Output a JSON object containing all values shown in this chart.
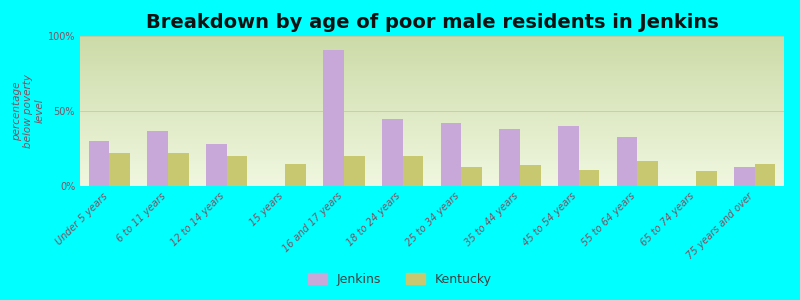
{
  "title": "Breakdown by age of poor male residents in Jenkins",
  "ylabel": "percentage\nbelow poverty\nlevel",
  "categories": [
    "Under 5 years",
    "6 to 11 years",
    "12 to 14 years",
    "15 years",
    "16 and 17 years",
    "18 to 24 years",
    "25 to 34 years",
    "35 to 44 years",
    "45 to 54 years",
    "55 to 64 years",
    "65 to 74 years",
    "75 years and over"
  ],
  "jenkins": [
    30,
    37,
    28,
    0,
    91,
    45,
    42,
    38,
    40,
    33,
    0,
    13
  ],
  "kentucky": [
    22,
    22,
    20,
    15,
    20,
    20,
    13,
    14,
    11,
    17,
    10,
    15
  ],
  "jenkins_color": "#c8a8d8",
  "kentucky_color": "#c8c870",
  "bg_color": "#00ffff",
  "grad_top": "#ccdba8",
  "grad_bottom": "#f0f7e0",
  "bar_width": 0.35,
  "ylim": [
    0,
    100
  ],
  "yticks": [
    0,
    50,
    100
  ],
  "ytick_labels": [
    "0%",
    "50%",
    "100%"
  ],
  "title_fontsize": 14,
  "axis_label_fontsize": 7.5,
  "tick_label_fontsize": 7,
  "legend_fontsize": 9
}
